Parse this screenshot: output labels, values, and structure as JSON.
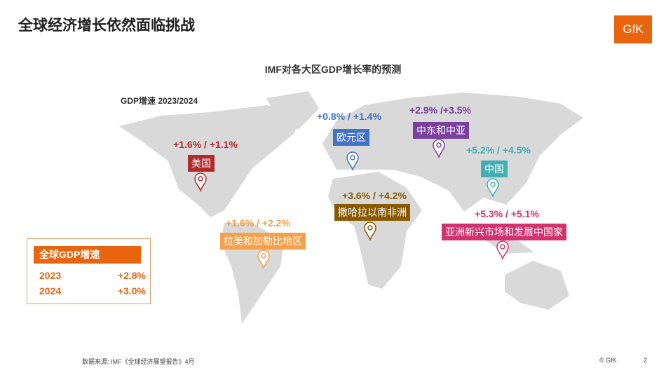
{
  "header": {
    "title": "全球经济增长依然面临挑战",
    "logo": "GfK"
  },
  "subtitle": "IMF对各大区GDP增长率的预测",
  "gdp_label": "GDP增速 2023/2024",
  "regions": [
    {
      "name": "美国",
      "growth": "+1.6% / +1.1%",
      "color": "#b22a2e"
    },
    {
      "name": "欧元区",
      "growth": "+0.8% / +1.4%",
      "color": "#4472c4"
    },
    {
      "name": "中东和中亚",
      "growth": "+2.9% /+3.5%",
      "color": "#7b3fa0"
    },
    {
      "name": "中国",
      "growth": "+5.2% / +4.5%",
      "color": "#42aeb1"
    },
    {
      "name": "撒哈拉以南非洲",
      "growth": "+3.6% / +4.2%",
      "color": "#8a5a00"
    },
    {
      "name": "亚洲新兴市场和发展中国家",
      "growth": "+5.3% / +5.1%",
      "color": "#d2336c"
    },
    {
      "name": "拉美和加勒比地区",
      "growth": "+1.6% / +2.2%",
      "color": "#f5a04a"
    }
  ],
  "summary": {
    "title": "全球GDP增速",
    "rows": [
      [
        "2023",
        "+2.8%"
      ],
      [
        "2024",
        "+3.0%"
      ]
    ]
  },
  "footer": {
    "source": "数据来源: IMF《全球经济展望报告》4月",
    "copyright": "© GfK",
    "page": "2"
  }
}
